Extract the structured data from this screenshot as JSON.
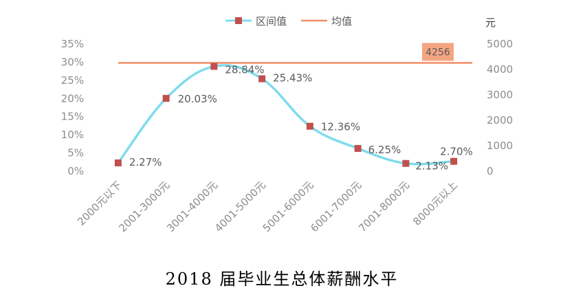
{
  "chart_data": {
    "type": "line",
    "title": "2018 届毕业生总体薪酬水平",
    "categories": [
      "2000元以下",
      "2001-3000元",
      "3001-4000元",
      "4001-5000元",
      "5001-6000元",
      "6001-7000元",
      "7001-8000元",
      "8000元以上"
    ],
    "series": [
      {
        "name": "区间值",
        "axis": "left",
        "values": [
          2.27,
          20.03,
          28.84,
          25.43,
          12.36,
          6.25,
          2.13,
          2.7
        ],
        "labels": [
          "2.27%",
          "20.03%",
          "28.84%",
          "25.43%",
          "12.36%",
          "6.25%",
          "2.13%",
          "2.70%"
        ],
        "line_color": "#7fdcec",
        "marker_color": "#c0504d"
      },
      {
        "name": "均值",
        "axis": "right",
        "value": 4256,
        "label": "4256",
        "line_color": "#ef8e63",
        "label_bg": "#f4a582"
      }
    ],
    "y_left": {
      "ylim": [
        0,
        35
      ],
      "ticks": [
        0,
        5,
        10,
        15,
        20,
        25,
        30,
        35
      ],
      "tick_labels": [
        "0%",
        "5%",
        "10%",
        "15%",
        "20%",
        "25%",
        "30%",
        "35%"
      ]
    },
    "y_right": {
      "ylim": [
        0,
        5000
      ],
      "ticks": [
        0,
        1000,
        2000,
        3000,
        4000,
        5000
      ],
      "tick_labels": [
        "0",
        "1000",
        "2000",
        "3000",
        "4000",
        "5000"
      ],
      "unit": "元"
    },
    "legend": {
      "position": "top",
      "items": [
        "区间值",
        "均值"
      ]
    },
    "grid": false
  }
}
